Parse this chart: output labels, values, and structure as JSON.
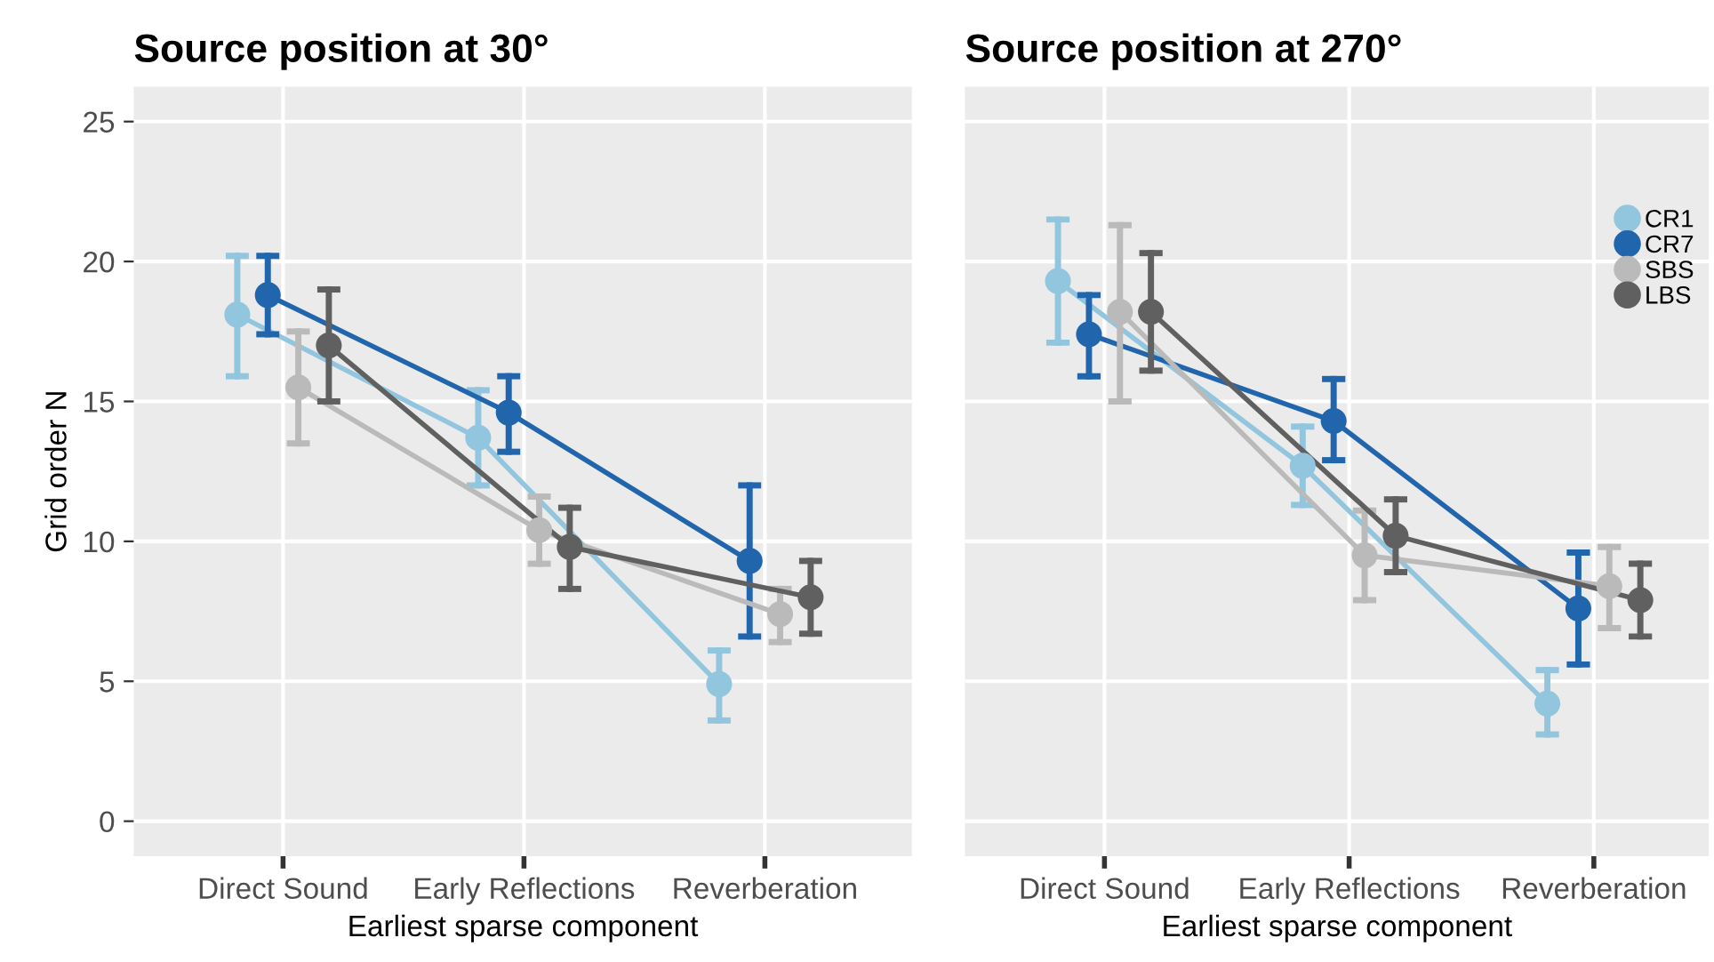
{
  "chart_data": [
    {
      "type": "line",
      "title": "Source position at 30°",
      "xlabel": "Earliest sparse component",
      "ylabel": "Grid order N",
      "categories": [
        "Direct Sound",
        "Early Reflections",
        "Reverberation"
      ],
      "ylim": [
        -1.25,
        26.25
      ],
      "yticks": [
        0,
        5,
        10,
        15,
        20,
        25
      ],
      "grid": true,
      "marker": "circle",
      "line_style": "solid",
      "series": [
        {
          "color": "#92c5de",
          "values": [
            18.1,
            13.7,
            4.9
          ],
          "errors": [
            [
              15.9,
              20.2
            ],
            [
              12.0,
              15.4
            ],
            [
              3.6,
              6.1
            ]
          ]
        },
        {
          "color": "#2166ac",
          "values": [
            18.8,
            14.6,
            9.3
          ],
          "errors": [
            [
              17.4,
              20.2
            ],
            [
              13.2,
              15.9
            ],
            [
              6.6,
              12.0
            ]
          ]
        },
        {
          "color": "#bababa",
          "values": [
            15.5,
            10.4,
            7.4
          ],
          "errors": [
            [
              13.5,
              17.5
            ],
            [
              9.2,
              11.6
            ],
            [
              6.4,
              8.3
            ]
          ]
        },
        {
          "color": "#606060",
          "values": [
            17.0,
            9.8,
            8.0
          ],
          "errors": [
            [
              15.0,
              19.0
            ],
            [
              8.3,
              11.2
            ],
            [
              6.7,
              9.3
            ]
          ]
        }
      ]
    },
    {
      "type": "line",
      "title": "Source position at 270°",
      "xlabel": "Earliest sparse component",
      "categories": [
        "Direct Sound",
        "Early Reflections",
        "Reverberation"
      ],
      "ylim": [
        -1.25,
        26.25
      ],
      "yticks": [
        0,
        5,
        10,
        15,
        20,
        25
      ],
      "tick_labels": "x",
      "grid": true,
      "marker": "circle",
      "line_style": "solid",
      "legend": "top right",
      "series": [
        {
          "name": "CR1",
          "color": "#92c5de",
          "values": [
            19.3,
            12.7,
            4.2
          ],
          "errors": [
            [
              17.1,
              21.5
            ],
            [
              11.3,
              14.1
            ],
            [
              3.1,
              5.4
            ]
          ]
        },
        {
          "name": "CR7",
          "color": "#2166ac",
          "values": [
            17.4,
            14.3,
            7.6
          ],
          "errors": [
            [
              15.9,
              18.8
            ],
            [
              12.9,
              15.8
            ],
            [
              5.6,
              9.6
            ]
          ]
        },
        {
          "name": "SBS",
          "color": "#bababa",
          "values": [
            18.2,
            9.5,
            8.4
          ],
          "errors": [
            [
              15.0,
              21.3
            ],
            [
              7.9,
              11.1
            ],
            [
              6.9,
              9.8
            ]
          ]
        },
        {
          "name": "LBS",
          "color": "#606060",
          "values": [
            18.2,
            10.2,
            7.9
          ],
          "errors": [
            [
              16.1,
              20.3
            ],
            [
              8.9,
              11.5
            ],
            [
              6.6,
              9.2
            ]
          ]
        }
      ]
    }
  ]
}
